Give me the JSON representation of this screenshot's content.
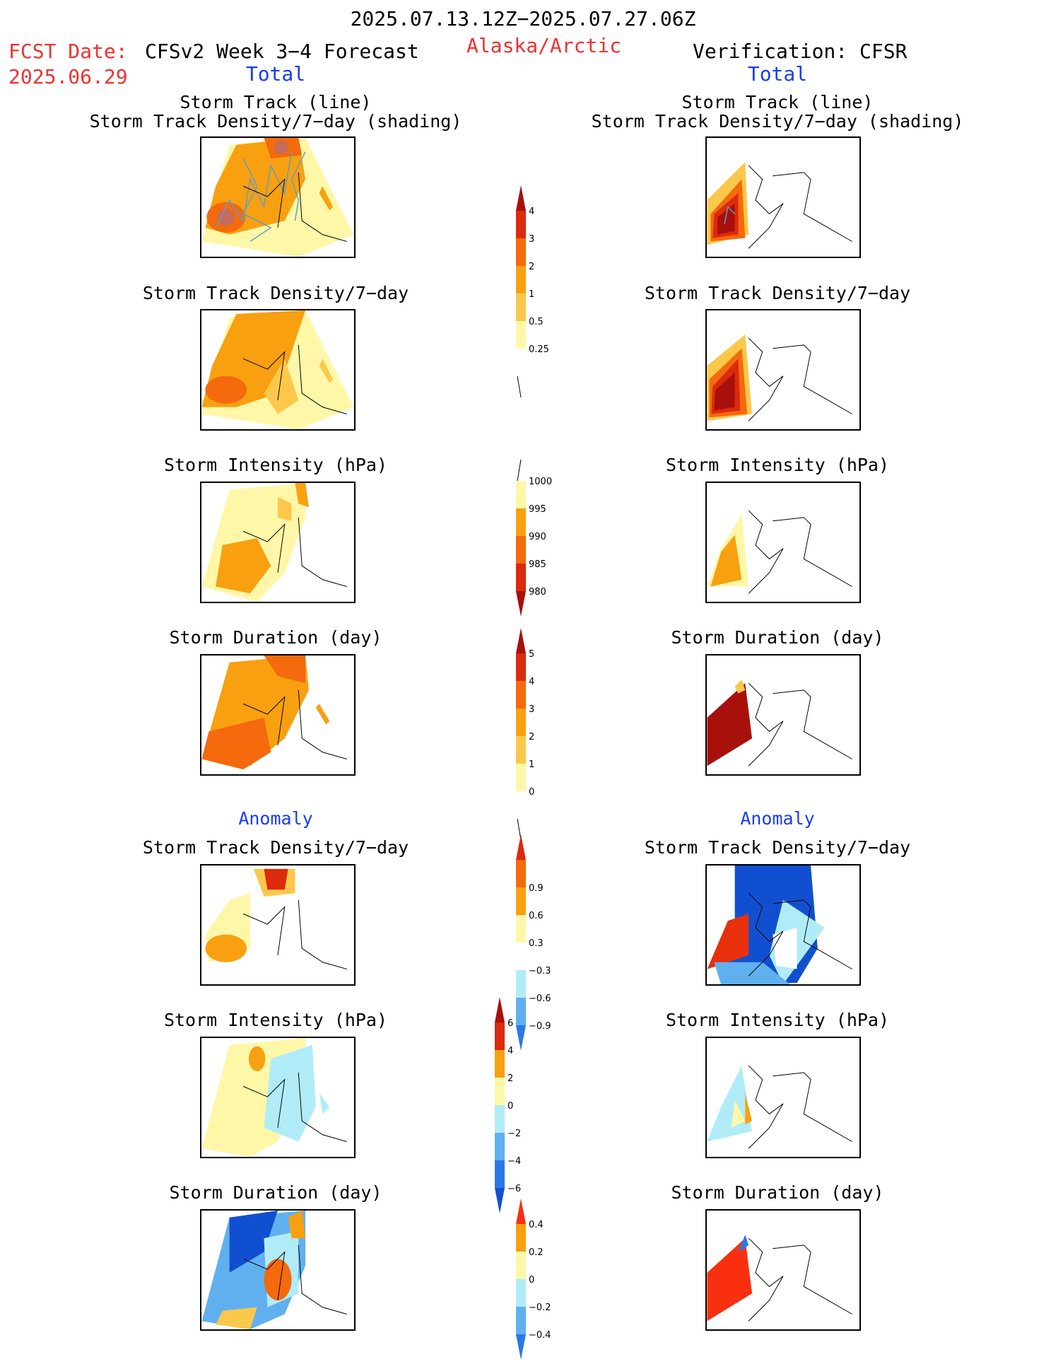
{
  "header": {
    "date_range": "2025.07.13.12Z−2025.07.27.06Z",
    "fcst_label": "FCST Date:",
    "fcst_date": "2025.06.29",
    "model_title": "CFSv2 Week 3−4 Forecast",
    "region": "Alaska/Arctic",
    "verification": "Verification: CFSR",
    "left_total": "Total",
    "right_total": "Total"
  },
  "sections": {
    "left_anomaly": "Anomaly",
    "right_anomaly": "Anomaly"
  },
  "panel_titles": {
    "track_line": "Storm Track (line)",
    "track_shading": "Storm Track Density/7−day (shading)",
    "density": "Storm Track Density/7−day",
    "intensity": "Storm Intensity (hPa)",
    "duration": "Storm Duration (day)"
  },
  "colorbars": {
    "density_total": [
      "0.25",
      "0.5",
      "1",
      "2",
      "3",
      "4"
    ],
    "intensity_total": [
      "1000",
      "995",
      "990",
      "985",
      "980"
    ],
    "duration_total": [
      "0",
      "1",
      "2",
      "3",
      "4",
      "5"
    ],
    "density_anom": [
      "0.9",
      "0.6",
      "0.3",
      "−0.3",
      "−0.6",
      "−0.9"
    ],
    "intensity_anom": [
      "6",
      "4",
      "2",
      "0",
      "−2",
      "−4",
      "−6"
    ],
    "duration_anom": [
      "0.4",
      "0.2",
      "0",
      "−0.2",
      "−0.4"
    ]
  },
  "colors": {
    "pale_yellow": "#fff7a8",
    "light_orange": "#fcc84a",
    "orange": "#f8a010",
    "dark_orange": "#f46a0c",
    "red": "#dc2a0c",
    "dark_red": "#a8100c",
    "light_blue": "#b0ecf8",
    "mid_blue": "#60b0f0",
    "blue": "#2a78e8",
    "dark_blue": "#1050d0"
  }
}
